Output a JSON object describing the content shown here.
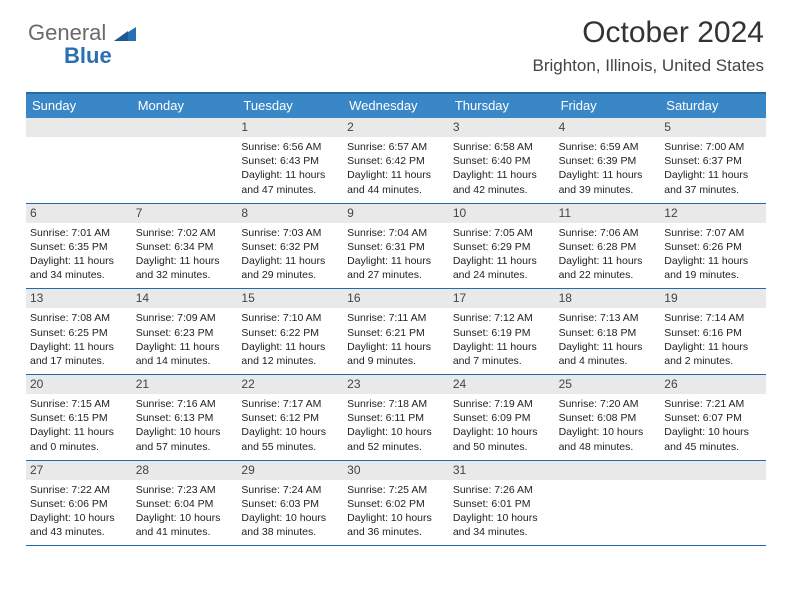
{
  "brand": {
    "part1": "General",
    "part2": "Blue"
  },
  "header": {
    "title": "October 2024",
    "location": "Brighton, Illinois, United States"
  },
  "dow": [
    "Sunday",
    "Monday",
    "Tuesday",
    "Wednesday",
    "Thursday",
    "Friday",
    "Saturday"
  ],
  "colors": {
    "header_bar": "#3a87c8",
    "rule": "#2968a8",
    "daynum_bg": "#e9e9e9",
    "text": "#222222",
    "logo_gray": "#6a6a6a",
    "logo_blue": "#2b6fb3"
  },
  "weeks": [
    [
      null,
      null,
      {
        "n": "1",
        "sr": "Sunrise: 6:56 AM",
        "ss": "Sunset: 6:43 PM",
        "d1": "Daylight: 11 hours",
        "d2": "and 47 minutes."
      },
      {
        "n": "2",
        "sr": "Sunrise: 6:57 AM",
        "ss": "Sunset: 6:42 PM",
        "d1": "Daylight: 11 hours",
        "d2": "and 44 minutes."
      },
      {
        "n": "3",
        "sr": "Sunrise: 6:58 AM",
        "ss": "Sunset: 6:40 PM",
        "d1": "Daylight: 11 hours",
        "d2": "and 42 minutes."
      },
      {
        "n": "4",
        "sr": "Sunrise: 6:59 AM",
        "ss": "Sunset: 6:39 PM",
        "d1": "Daylight: 11 hours",
        "d2": "and 39 minutes."
      },
      {
        "n": "5",
        "sr": "Sunrise: 7:00 AM",
        "ss": "Sunset: 6:37 PM",
        "d1": "Daylight: 11 hours",
        "d2": "and 37 minutes."
      }
    ],
    [
      {
        "n": "6",
        "sr": "Sunrise: 7:01 AM",
        "ss": "Sunset: 6:35 PM",
        "d1": "Daylight: 11 hours",
        "d2": "and 34 minutes."
      },
      {
        "n": "7",
        "sr": "Sunrise: 7:02 AM",
        "ss": "Sunset: 6:34 PM",
        "d1": "Daylight: 11 hours",
        "d2": "and 32 minutes."
      },
      {
        "n": "8",
        "sr": "Sunrise: 7:03 AM",
        "ss": "Sunset: 6:32 PM",
        "d1": "Daylight: 11 hours",
        "d2": "and 29 minutes."
      },
      {
        "n": "9",
        "sr": "Sunrise: 7:04 AM",
        "ss": "Sunset: 6:31 PM",
        "d1": "Daylight: 11 hours",
        "d2": "and 27 minutes."
      },
      {
        "n": "10",
        "sr": "Sunrise: 7:05 AM",
        "ss": "Sunset: 6:29 PM",
        "d1": "Daylight: 11 hours",
        "d2": "and 24 minutes."
      },
      {
        "n": "11",
        "sr": "Sunrise: 7:06 AM",
        "ss": "Sunset: 6:28 PM",
        "d1": "Daylight: 11 hours",
        "d2": "and 22 minutes."
      },
      {
        "n": "12",
        "sr": "Sunrise: 7:07 AM",
        "ss": "Sunset: 6:26 PM",
        "d1": "Daylight: 11 hours",
        "d2": "and 19 minutes."
      }
    ],
    [
      {
        "n": "13",
        "sr": "Sunrise: 7:08 AM",
        "ss": "Sunset: 6:25 PM",
        "d1": "Daylight: 11 hours",
        "d2": "and 17 minutes."
      },
      {
        "n": "14",
        "sr": "Sunrise: 7:09 AM",
        "ss": "Sunset: 6:23 PM",
        "d1": "Daylight: 11 hours",
        "d2": "and 14 minutes."
      },
      {
        "n": "15",
        "sr": "Sunrise: 7:10 AM",
        "ss": "Sunset: 6:22 PM",
        "d1": "Daylight: 11 hours",
        "d2": "and 12 minutes."
      },
      {
        "n": "16",
        "sr": "Sunrise: 7:11 AM",
        "ss": "Sunset: 6:21 PM",
        "d1": "Daylight: 11 hours",
        "d2": "and 9 minutes."
      },
      {
        "n": "17",
        "sr": "Sunrise: 7:12 AM",
        "ss": "Sunset: 6:19 PM",
        "d1": "Daylight: 11 hours",
        "d2": "and 7 minutes."
      },
      {
        "n": "18",
        "sr": "Sunrise: 7:13 AM",
        "ss": "Sunset: 6:18 PM",
        "d1": "Daylight: 11 hours",
        "d2": "and 4 minutes."
      },
      {
        "n": "19",
        "sr": "Sunrise: 7:14 AM",
        "ss": "Sunset: 6:16 PM",
        "d1": "Daylight: 11 hours",
        "d2": "and 2 minutes."
      }
    ],
    [
      {
        "n": "20",
        "sr": "Sunrise: 7:15 AM",
        "ss": "Sunset: 6:15 PM",
        "d1": "Daylight: 11 hours",
        "d2": "and 0 minutes."
      },
      {
        "n": "21",
        "sr": "Sunrise: 7:16 AM",
        "ss": "Sunset: 6:13 PM",
        "d1": "Daylight: 10 hours",
        "d2": "and 57 minutes."
      },
      {
        "n": "22",
        "sr": "Sunrise: 7:17 AM",
        "ss": "Sunset: 6:12 PM",
        "d1": "Daylight: 10 hours",
        "d2": "and 55 minutes."
      },
      {
        "n": "23",
        "sr": "Sunrise: 7:18 AM",
        "ss": "Sunset: 6:11 PM",
        "d1": "Daylight: 10 hours",
        "d2": "and 52 minutes."
      },
      {
        "n": "24",
        "sr": "Sunrise: 7:19 AM",
        "ss": "Sunset: 6:09 PM",
        "d1": "Daylight: 10 hours",
        "d2": "and 50 minutes."
      },
      {
        "n": "25",
        "sr": "Sunrise: 7:20 AM",
        "ss": "Sunset: 6:08 PM",
        "d1": "Daylight: 10 hours",
        "d2": "and 48 minutes."
      },
      {
        "n": "26",
        "sr": "Sunrise: 7:21 AM",
        "ss": "Sunset: 6:07 PM",
        "d1": "Daylight: 10 hours",
        "d2": "and 45 minutes."
      }
    ],
    [
      {
        "n": "27",
        "sr": "Sunrise: 7:22 AM",
        "ss": "Sunset: 6:06 PM",
        "d1": "Daylight: 10 hours",
        "d2": "and 43 minutes."
      },
      {
        "n": "28",
        "sr": "Sunrise: 7:23 AM",
        "ss": "Sunset: 6:04 PM",
        "d1": "Daylight: 10 hours",
        "d2": "and 41 minutes."
      },
      {
        "n": "29",
        "sr": "Sunrise: 7:24 AM",
        "ss": "Sunset: 6:03 PM",
        "d1": "Daylight: 10 hours",
        "d2": "and 38 minutes."
      },
      {
        "n": "30",
        "sr": "Sunrise: 7:25 AM",
        "ss": "Sunset: 6:02 PM",
        "d1": "Daylight: 10 hours",
        "d2": "and 36 minutes."
      },
      {
        "n": "31",
        "sr": "Sunrise: 7:26 AM",
        "ss": "Sunset: 6:01 PM",
        "d1": "Daylight: 10 hours",
        "d2": "and 34 minutes."
      },
      null,
      null
    ]
  ]
}
